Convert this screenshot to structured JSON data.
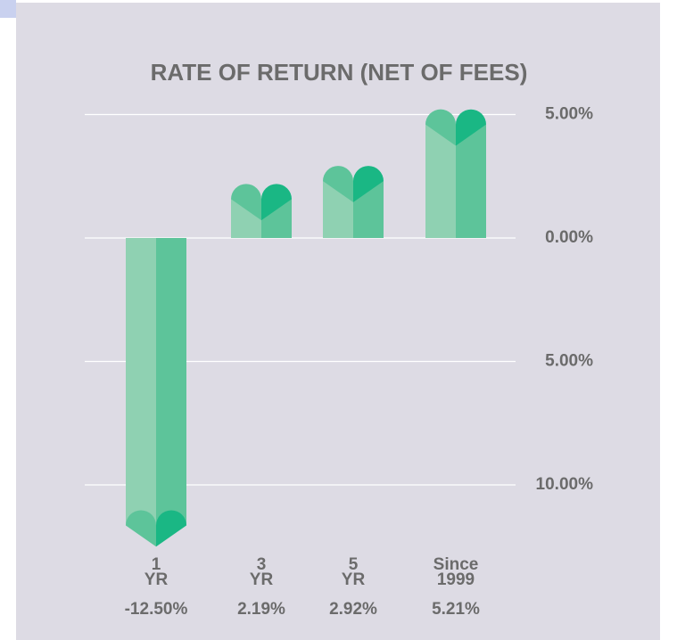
{
  "chart_data": {
    "type": "bar",
    "title": "RATE OF RETURN (NET OF FEES)",
    "categories": [
      "1 YR",
      "3 YR",
      "5 YR",
      "Since 1999"
    ],
    "values": [
      -12.5,
      2.19,
      2.92,
      5.21
    ],
    "value_labels": [
      "-12.50%",
      "2.19%",
      "2.92%",
      "5.21%"
    ],
    "color": "#5dc49a",
    "ylim": [
      -15,
      5.5
    ],
    "yticks": [
      {
        "value": 5,
        "label": "5.00%"
      },
      {
        "value": 0,
        "label": "0.00%"
      },
      {
        "value": -5,
        "label": "5.00%"
      },
      {
        "value": -10,
        "label": "10.00%"
      }
    ],
    "grid": true
  }
}
